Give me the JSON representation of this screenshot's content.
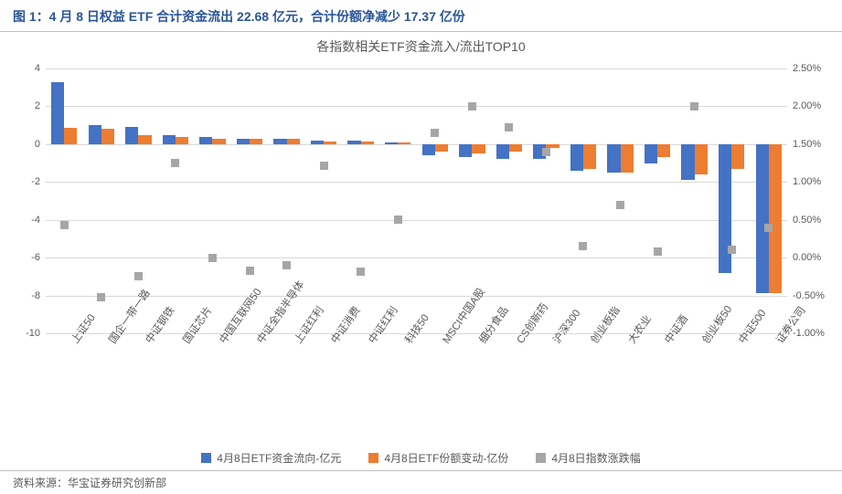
{
  "figure_title": "图 1：4 月 8 日权益 ETF 合计资金流出 22.68 亿元，合计份额净减少 17.37 亿份",
  "chart": {
    "type": "bar+scatter",
    "title": "各指数相关ETF资金流入/流出TOP10",
    "background_color": "#ffffff",
    "grid_color": "#d9d9d9",
    "axis_text_color": "#595959",
    "axis_fontsize": 11,
    "title_fontsize": 14,
    "y_left": {
      "min": -10,
      "max": 4,
      "step": 2,
      "ticks": [
        -10,
        -8,
        -6,
        -4,
        -2,
        0,
        2,
        4
      ]
    },
    "y_right": {
      "min": -1.0,
      "max": 2.5,
      "step": 0.5,
      "ticks": [
        "-1.00%",
        "-0.50%",
        "0.00%",
        "0.50%",
        "1.00%",
        "1.50%",
        "2.00%",
        "2.50%"
      ]
    },
    "categories": [
      "上证50",
      "国企一带一路",
      "中证钢铁",
      "国证芯片",
      "中国互联网50",
      "中证全指半导体",
      "上证红利",
      "中证消费",
      "中证红利",
      "科技50",
      "MSCI中国A股",
      "细分食品",
      "CS创新药",
      "沪深300",
      "创业板指",
      "大农业",
      "中证酒",
      "创业板50",
      "中证500",
      "证券公司"
    ],
    "series": [
      {
        "name": "4月8日ETF资金流向-亿元",
        "type": "bar",
        "axis": "left",
        "color": "#4472c4",
        "values": [
          3.3,
          1.0,
          0.9,
          0.5,
          0.4,
          0.3,
          0.3,
          0.2,
          0.2,
          0.1,
          -0.6,
          -0.7,
          -0.8,
          -0.8,
          -1.4,
          -1.5,
          -1.0,
          -1.9,
          -6.8,
          -7.9
        ]
      },
      {
        "name": "4月8日ETF份额变动-亿份",
        "type": "bar",
        "axis": "left",
        "color": "#ed7d31",
        "values": [
          0.85,
          0.8,
          0.5,
          0.4,
          0.3,
          0.3,
          0.3,
          0.15,
          0.15,
          0.1,
          -0.4,
          -0.5,
          -0.4,
          -0.2,
          -1.3,
          -1.5,
          -0.7,
          -1.6,
          -1.3,
          -7.9
        ]
      },
      {
        "name": "4月8日指数涨跌幅",
        "type": "scatter",
        "axis": "right",
        "color": "#a6a6a6",
        "values": [
          0.43,
          -0.52,
          -0.25,
          1.25,
          0.0,
          -0.17,
          -0.1,
          1.22,
          -0.18,
          0.5,
          1.65,
          2.0,
          1.72,
          1.4,
          0.15,
          0.7,
          0.08,
          2.0,
          0.1,
          0.4
        ]
      }
    ],
    "bar_width": 0.35
  },
  "legend_labels": {
    "s1": "4月8日ETF资金流向-亿元",
    "s2": "4月8日ETF份额变动-亿份",
    "s3": "4月8日指数涨跌幅"
  },
  "source": "资料来源：华宝证券研究创新部"
}
